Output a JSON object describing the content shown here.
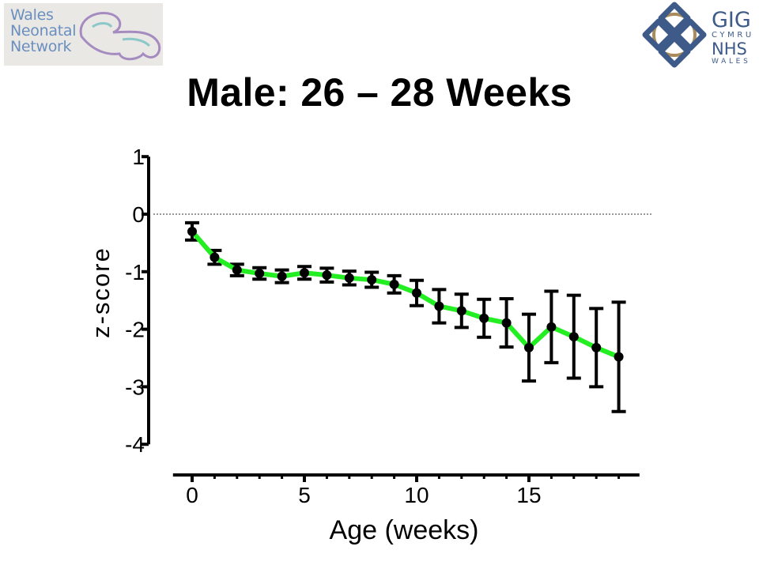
{
  "logos": {
    "left": {
      "lines": [
        "Wales",
        "Neonatal",
        "Network"
      ],
      "color": "#6a8fbf",
      "accent": "#a58bbf"
    },
    "right": {
      "lines": [
        "GIG",
        "CYMRU",
        "NHS",
        "WALES"
      ],
      "color": "#3d5a88",
      "ring": "#a88a5c"
    }
  },
  "slide": {
    "title": "Male: 26 – 28 Weeks"
  },
  "chart_data": {
    "type": "line",
    "title": "Male: 26 – 28 Weeks",
    "xlabel": "Age (weeks)",
    "ylabel": "z-score",
    "xlim": [
      -0.5,
      19.5
    ],
    "ylim": [
      -4,
      1
    ],
    "xticks": [
      0,
      5,
      10,
      15
    ],
    "yticks": [
      1,
      0,
      -1,
      -2,
      -3,
      -4
    ],
    "reference_line": {
      "y": 0,
      "style": "dotted"
    },
    "line_color": "#22ee22",
    "marker_color": "#000000",
    "grid": false,
    "series": [
      {
        "x": [
          0,
          1,
          2,
          3,
          4,
          5,
          6,
          7,
          8,
          9,
          10,
          11,
          12,
          13,
          14,
          15,
          16,
          17,
          18,
          19
        ],
        "y": [
          -0.3,
          -0.75,
          -0.97,
          -1.03,
          -1.08,
          -1.02,
          -1.06,
          -1.11,
          -1.14,
          -1.22,
          -1.37,
          -1.6,
          -1.68,
          -1.81,
          -1.89,
          -2.32,
          -1.96,
          -2.13,
          -2.32,
          -2.48
        ],
        "err": [
          0.15,
          0.12,
          0.1,
          0.1,
          0.11,
          0.11,
          0.12,
          0.12,
          0.13,
          0.15,
          0.22,
          0.29,
          0.29,
          0.33,
          0.42,
          0.58,
          0.62,
          0.72,
          0.68,
          0.95
        ]
      }
    ]
  }
}
